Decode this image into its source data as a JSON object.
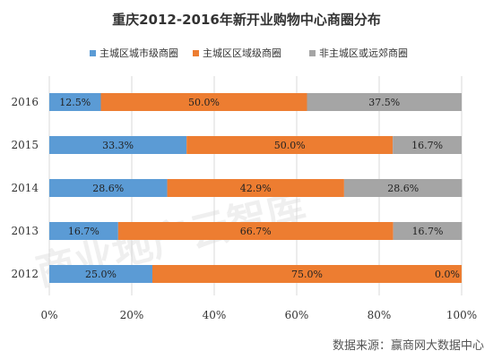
{
  "watermark": "商业地产云智库",
  "source": "数据来源：赢商网大数据中心",
  "chart_data": {
    "type": "bar",
    "orientation": "horizontal",
    "stacked": true,
    "title": "重庆2012-2016年新开业购物中心商圈分布",
    "categories": [
      "2016",
      "2015",
      "2014",
      "2013",
      "2012"
    ],
    "series": [
      {
        "name": "主城区城市级商圈",
        "color": "#5b9bd5",
        "values": [
          12.5,
          33.3,
          28.6,
          16.7,
          25.0
        ],
        "labels": [
          "12.5%",
          "33.3%",
          "28.6%",
          "16.7%",
          "25.0%"
        ]
      },
      {
        "name": "主城区区域级商圈",
        "color": "#ed7d31",
        "values": [
          50.0,
          50.0,
          42.9,
          66.7,
          75.0
        ],
        "labels": [
          "50.0%",
          "50.0%",
          "42.9%",
          "66.7%",
          "75.0%"
        ]
      },
      {
        "name": "非主城区或远郊商圈",
        "color": "#a5a5a5",
        "values": [
          37.5,
          16.7,
          28.6,
          16.7,
          0.0
        ],
        "labels": [
          "37.5%",
          "16.7%",
          "28.6%",
          "16.7%",
          "0.0%"
        ]
      }
    ],
    "xlim": [
      0,
      100
    ],
    "xticks": [
      "0%",
      "20%",
      "40%",
      "60%",
      "80%",
      "100%"
    ],
    "legend_position": "top",
    "grid": true
  }
}
